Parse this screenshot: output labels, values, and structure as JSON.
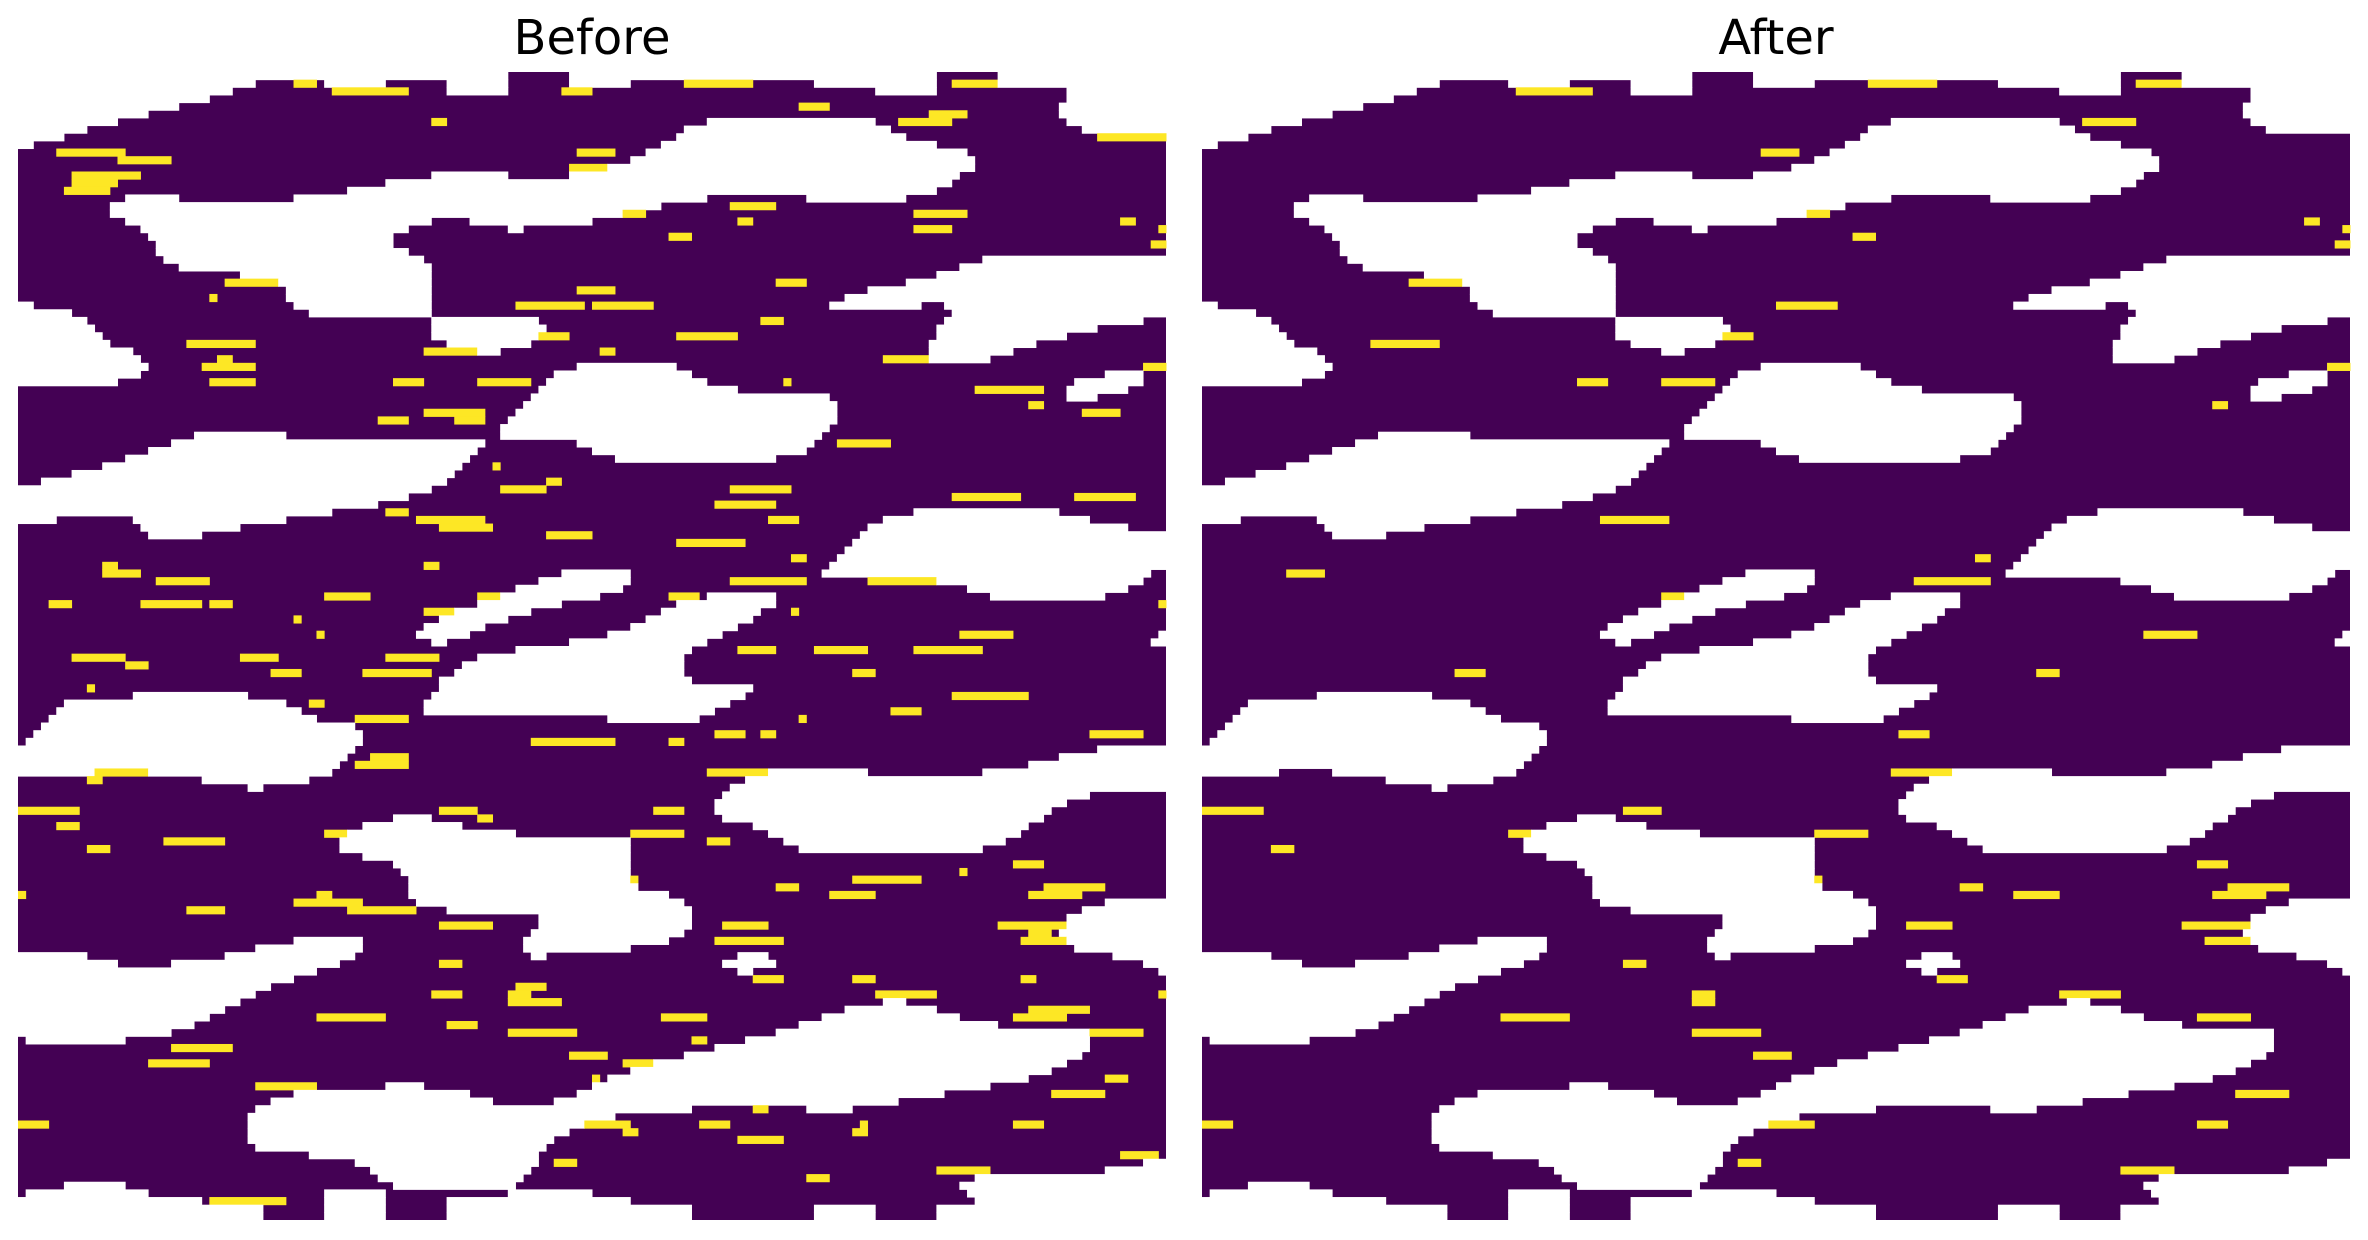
{
  "panels": [
    {
      "title": "Before"
    },
    {
      "title": "After"
    }
  ]
}
